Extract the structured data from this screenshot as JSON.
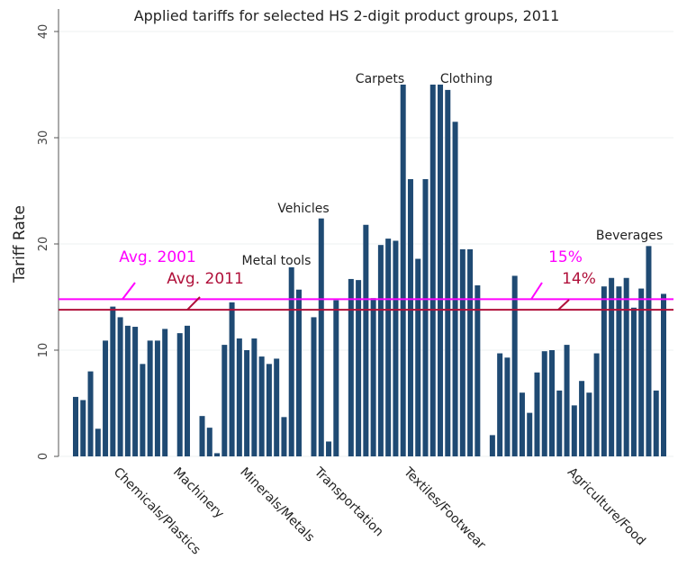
{
  "chart_data": {
    "type": "bar",
    "title": "Applied tariffs for selected HS 2-digit product groups, 2011",
    "y_label": "Tariff Rate",
    "categories": [
      null,
      null,
      null,
      null,
      null,
      null,
      "Chemicals/Plastics",
      null,
      null,
      null,
      null,
      null,
      null,
      null,
      "Machinery",
      null,
      null,
      null,
      null,
      null,
      null,
      null,
      null,
      "Minerals/Metals",
      null,
      null,
      null,
      null,
      null,
      null,
      null,
      null,
      null,
      "Transportation",
      null,
      null,
      null,
      null,
      null,
      null,
      null,
      null,
      null,
      null,
      null,
      "Textiles/Footwear",
      null,
      null,
      null,
      null,
      null,
      null,
      null,
      null,
      null,
      null,
      null,
      null,
      null,
      null,
      null,
      null,
      null,
      null,
      null,
      null,
      null,
      "Agriculture/Food",
      null,
      null,
      null,
      null,
      null,
      null,
      null,
      null,
      null,
      null,
      null,
      null
    ],
    "values": [
      5.6,
      5.3,
      8.0,
      2.6,
      10.9,
      14.1,
      13.1,
      12.3,
      12.2,
      8.7,
      10.9,
      10.9,
      12.0,
      null,
      11.6,
      12.3,
      null,
      3.8,
      2.7,
      0.3,
      10.5,
      14.5,
      11.1,
      10.0,
      11.1,
      9.4,
      8.7,
      9.2,
      3.7,
      17.8,
      15.7,
      null,
      13.1,
      22.4,
      1.4,
      14.7,
      null,
      16.7,
      16.6,
      21.8,
      14.9,
      19.9,
      20.5,
      20.3,
      35.0,
      26.1,
      18.6,
      26.1,
      35.0,
      35.0,
      34.5,
      31.5,
      19.5,
      19.5,
      16.1,
      null,
      2.0,
      9.7,
      9.3,
      17.0,
      6.0,
      4.1,
      7.9,
      9.9,
      10.0,
      6.2,
      10.5,
      4.8,
      7.1,
      6.0,
      9.7,
      16.0,
      16.8,
      16.0,
      16.8,
      14.0,
      15.8,
      19.8,
      6.2,
      15.3
    ],
    "color": "#1f4a73",
    "ylim": [
      0,
      40
    ],
    "yticks": [
      0,
      10,
      20,
      30,
      40
    ],
    "grid": true,
    "annotations": [
      "Metal tools",
      "Vehicles",
      "Carpets",
      "Clothing",
      "Beverages"
    ],
    "reference_lines": [
      {
        "name": "Avg. 2001",
        "value": 14.8,
        "value_label": "15%",
        "color": "#ff00ff"
      },
      {
        "name": "Avg. 2011",
        "value": 13.8,
        "value_label": "14%",
        "color": "#b0103a"
      }
    ]
  }
}
